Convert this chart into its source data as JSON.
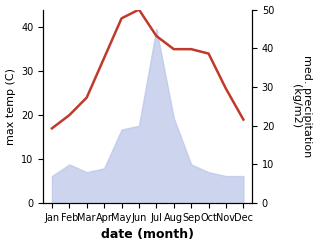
{
  "months": [
    "Jan",
    "Feb",
    "Mar",
    "Apr",
    "May",
    "Jun",
    "Jul",
    "Aug",
    "Sep",
    "Oct",
    "Nov",
    "Dec"
  ],
  "x": [
    1,
    2,
    3,
    4,
    5,
    6,
    7,
    8,
    9,
    10,
    11,
    12
  ],
  "max_temp": [
    17,
    20,
    24,
    33,
    42,
    44,
    38,
    35,
    35,
    34,
    26,
    19
  ],
  "precipitation": [
    7,
    10,
    8,
    9,
    19,
    20,
    45,
    22,
    10,
    8,
    7,
    7
  ],
  "temp_color": "#c0392b",
  "precip_color": "#b8c4e8",
  "title": "",
  "xlabel": "date (month)",
  "ylabel_left": "max temp (C)",
  "ylabel_right": "med. precipitation\n(kg/m2)",
  "ylim_left": [
    0,
    44
  ],
  "ylim_right": [
    0,
    50
  ],
  "yticks_left": [
    0,
    10,
    20,
    30,
    40
  ],
  "yticks_right": [
    0,
    10,
    20,
    30,
    40,
    50
  ],
  "background_color": "#ffffff",
  "temp_linewidth": 1.8,
  "xlabel_fontsize": 9,
  "ylabel_fontsize": 8,
  "tick_fontsize": 7
}
